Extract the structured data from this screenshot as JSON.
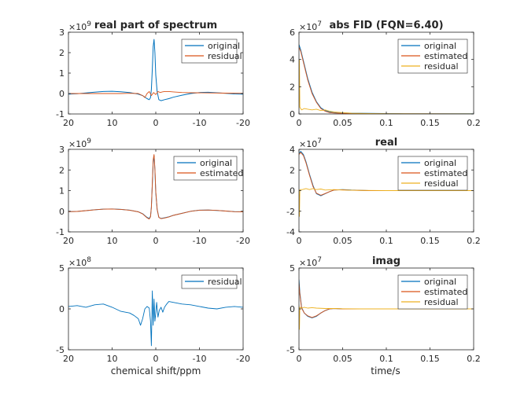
{
  "figure": {
    "xlabel_left": "chemical shift/ppm",
    "xlabel_right": "time/s"
  },
  "chart_data": [
    {
      "type": "line",
      "title": "real part of spectrum",
      "xlabel": "",
      "ylabel": "",
      "xlim": [
        20,
        -20
      ],
      "ylim": [
        -1,
        3
      ],
      "x_reversed": true,
      "xticks": [
        20,
        10,
        0,
        -10,
        -20
      ],
      "xtick_labels": [
        "20",
        "10",
        "0",
        "-10",
        "-20"
      ],
      "yticks": [
        -1,
        0,
        1,
        2,
        3
      ],
      "ytick_labels": [
        "-1",
        "0",
        "1",
        "2",
        "3"
      ],
      "exponent_label": "×10^9",
      "legend_position": "top-right",
      "grid": false,
      "series": [
        {
          "name": "original",
          "color": "#0072BD",
          "x": [
            20,
            18,
            16,
            14,
            12,
            10,
            8,
            6,
            4,
            3,
            2,
            1.5,
            1.2,
            1.0,
            0.8,
            0.6,
            0.4,
            0.2,
            0,
            -0.3,
            -0.7,
            -1.2,
            -2,
            -3,
            -4,
            -6,
            -8,
            -10,
            -12,
            -14,
            -16,
            -18,
            -20
          ],
          "y": [
            -0.03,
            -0.01,
            0.03,
            0.07,
            0.1,
            0.11,
            0.09,
            0.05,
            -0.03,
            -0.1,
            -0.25,
            -0.3,
            -0.2,
            0.2,
            1.2,
            2.3,
            2.65,
            2.0,
            0.9,
            0.1,
            -0.3,
            -0.35,
            -0.3,
            -0.25,
            -0.18,
            -0.08,
            0.0,
            0.05,
            0.06,
            0.04,
            0.01,
            -0.02,
            -0.03
          ]
        },
        {
          "name": "residual",
          "color": "#D95319",
          "x": [
            20,
            16,
            12,
            8,
            6,
            4,
            3,
            2.5,
            2,
            1.5,
            1,
            0.5,
            0,
            -0.5,
            -1,
            -1.5,
            -2,
            -3,
            -4,
            -6,
            -8,
            -12,
            -16,
            -20
          ],
          "y": [
            0.0,
            0.0,
            0.0,
            0.0,
            0.01,
            0.0,
            -0.1,
            -0.2,
            0.0,
            0.1,
            -0.1,
            0.05,
            -0.05,
            0.1,
            0.05,
            0.08,
            0.1,
            0.1,
            0.08,
            0.05,
            0.04,
            0.03,
            0.02,
            0.01
          ]
        }
      ]
    },
    {
      "type": "line",
      "title": "abs FID (FQN=6.40)",
      "xlabel": "",
      "ylabel": "",
      "xlim": [
        0,
        0.2
      ],
      "ylim": [
        0,
        6
      ],
      "xticks": [
        0,
        0.05,
        0.1,
        0.15,
        0.2
      ],
      "xtick_labels": [
        "0",
        "0.05",
        "0.1",
        "0.15",
        "0.2"
      ],
      "yticks": [
        0,
        2,
        4,
        6
      ],
      "ytick_labels": [
        "0",
        "2",
        "4",
        "6"
      ],
      "exponent_label": "×10^7",
      "legend_position": "top-right",
      "grid": false,
      "series": [
        {
          "name": "original",
          "color": "#0072BD",
          "x": [
            0,
            0.002,
            0.005,
            0.01,
            0.015,
            0.02,
            0.025,
            0.03,
            0.035,
            0.04,
            0.05,
            0.06,
            0.08,
            0.1,
            0.12,
            0.15,
            0.2
          ],
          "y": [
            5.1,
            4.7,
            3.9,
            2.6,
            1.6,
            0.9,
            0.45,
            0.25,
            0.15,
            0.12,
            0.08,
            0.06,
            0.04,
            0.03,
            0.02,
            0.02,
            0.01
          ]
        },
        {
          "name": "estimated",
          "color": "#D95319",
          "x": [
            0,
            0.002,
            0.005,
            0.01,
            0.015,
            0.02,
            0.025,
            0.03,
            0.035,
            0.04,
            0.05,
            0.06,
            0.08,
            0.1,
            0.12,
            0.15,
            0.2
          ],
          "y": [
            4.9,
            4.6,
            3.8,
            2.5,
            1.5,
            0.85,
            0.4,
            0.2,
            0.1,
            0.07,
            0.04,
            0.03,
            0.02,
            0.01,
            0.01,
            0.01,
            0.0
          ]
        },
        {
          "name": "residual",
          "color": "#EDB120",
          "x": [
            0,
            0.0005,
            0.001,
            0.003,
            0.006,
            0.01,
            0.015,
            0.02,
            0.025,
            0.03,
            0.035,
            0.04,
            0.05,
            0.06,
            0.08,
            0.1,
            0.15,
            0.2
          ],
          "y": [
            0.3,
            4.0,
            0.5,
            0.3,
            0.4,
            0.35,
            0.3,
            0.35,
            0.25,
            0.3,
            0.2,
            0.15,
            0.1,
            0.05,
            0.03,
            0.02,
            0.01,
            0.01
          ]
        }
      ]
    },
    {
      "type": "line",
      "title": "",
      "xlabel": "",
      "ylabel": "",
      "xlim": [
        20,
        -20
      ],
      "ylim": [
        -1,
        3
      ],
      "x_reversed": true,
      "xticks": [
        20,
        10,
        0,
        -10,
        -20
      ],
      "xtick_labels": [
        "20",
        "10",
        "0",
        "-10",
        "-20"
      ],
      "yticks": [
        -1,
        0,
        1,
        2,
        3
      ],
      "ytick_labels": [
        "-1",
        "0",
        "1",
        "2",
        "3"
      ],
      "exponent_label": "×10^9",
      "legend_position": "top-right",
      "grid": false,
      "series": [
        {
          "name": "original",
          "color": "#0072BD",
          "x": [
            20,
            18,
            16,
            14,
            12,
            10,
            8,
            6,
            4,
            3,
            2,
            1.5,
            1.2,
            1.0,
            0.8,
            0.6,
            0.4,
            0.2,
            0,
            -0.3,
            -0.7,
            -1.2,
            -2,
            -3,
            -4,
            -6,
            -8,
            -10,
            -12,
            -14,
            -16,
            -18,
            -20
          ],
          "y": [
            -0.02,
            -0.01,
            0.03,
            0.07,
            0.1,
            0.11,
            0.09,
            0.05,
            -0.03,
            -0.12,
            -0.3,
            -0.35,
            -0.25,
            0.2,
            1.3,
            2.4,
            2.7,
            2.0,
            0.9,
            0.1,
            -0.3,
            -0.35,
            -0.32,
            -0.27,
            -0.2,
            -0.1,
            0.0,
            0.05,
            0.06,
            0.04,
            0.01,
            -0.02,
            -0.03
          ]
        },
        {
          "name": "estimated",
          "color": "#D95319",
          "x": [
            20,
            18,
            16,
            14,
            12,
            10,
            8,
            6,
            4,
            3,
            2,
            1.5,
            1.2,
            1.0,
            0.8,
            0.6,
            0.4,
            0.2,
            0,
            -0.3,
            -0.7,
            -1.2,
            -2,
            -3,
            -4,
            -6,
            -8,
            -10,
            -12,
            -14,
            -16,
            -18,
            -20
          ],
          "y": [
            -0.02,
            -0.01,
            0.03,
            0.07,
            0.1,
            0.11,
            0.09,
            0.05,
            -0.03,
            -0.13,
            -0.32,
            -0.38,
            -0.27,
            0.18,
            1.35,
            2.5,
            2.75,
            2.05,
            0.95,
            0.1,
            -0.3,
            -0.36,
            -0.33,
            -0.28,
            -0.2,
            -0.1,
            0.0,
            0.05,
            0.06,
            0.04,
            0.01,
            -0.02,
            -0.03
          ]
        }
      ]
    },
    {
      "type": "line",
      "title": "real",
      "xlabel": "",
      "ylabel": "",
      "xlim": [
        0,
        0.2
      ],
      "ylim": [
        -4,
        4
      ],
      "xticks": [
        0,
        0.05,
        0.1,
        0.15,
        0.2
      ],
      "xtick_labels": [
        "0",
        "0.05",
        "0.1",
        "0.15",
        "0.2"
      ],
      "yticks": [
        -4,
        -2,
        0,
        2,
        4
      ],
      "ytick_labels": [
        "-4",
        "-2",
        "0",
        "2",
        "4"
      ],
      "exponent_label": "×10^7",
      "legend_position": "top-right",
      "grid": false,
      "series": [
        {
          "name": "original",
          "color": "#0072BD",
          "x": [
            0,
            0.002,
            0.005,
            0.008,
            0.012,
            0.016,
            0.02,
            0.025,
            0.03,
            0.035,
            0.04,
            0.05,
            0.06,
            0.08,
            0.1,
            0.15,
            0.2
          ],
          "y": [
            3.6,
            3.8,
            3.5,
            2.8,
            1.6,
            0.5,
            -0.3,
            -0.5,
            -0.3,
            -0.1,
            0.05,
            0.1,
            0.05,
            0.0,
            0.0,
            0.0,
            0.0
          ]
        },
        {
          "name": "estimated",
          "color": "#D95319",
          "x": [
            0,
            0.002,
            0.005,
            0.008,
            0.012,
            0.016,
            0.02,
            0.025,
            0.03,
            0.035,
            0.04,
            0.05,
            0.06,
            0.08,
            0.1,
            0.15,
            0.2
          ],
          "y": [
            3.5,
            3.7,
            3.4,
            2.7,
            1.5,
            0.4,
            -0.25,
            -0.45,
            -0.28,
            -0.1,
            0.05,
            0.08,
            0.04,
            0.0,
            0.0,
            0.0,
            0.0
          ]
        },
        {
          "name": "residual",
          "color": "#EDB120",
          "x": [
            0,
            0.0005,
            0.001,
            0.004,
            0.008,
            0.012,
            0.016,
            0.02,
            0.025,
            0.03,
            0.04,
            0.05,
            0.07,
            0.1,
            0.15,
            0.2
          ],
          "y": [
            0.0,
            -2.5,
            0.1,
            0.1,
            0.2,
            0.1,
            0.2,
            0.1,
            0.15,
            0.05,
            0.1,
            0.05,
            0.02,
            0.0,
            0.0,
            0.0
          ]
        }
      ]
    },
    {
      "type": "line",
      "title": "",
      "xlabel": "chemical shift/ppm",
      "ylabel": "",
      "xlim": [
        20,
        -20
      ],
      "ylim": [
        -5,
        5
      ],
      "x_reversed": true,
      "xticks": [
        20,
        10,
        0,
        -10,
        -20
      ],
      "xtick_labels": [
        "20",
        "10",
        "0",
        "-10",
        "-20"
      ],
      "yticks": [
        -5,
        0,
        5
      ],
      "ytick_labels": [
        "-5",
        "0",
        "5"
      ],
      "exponent_label": "×10^8",
      "legend_position": "top-right",
      "grid": false,
      "series": [
        {
          "name": "residual",
          "color": "#0072BD",
          "x": [
            20,
            18,
            16,
            14,
            12,
            10,
            8,
            6,
            5,
            4,
            3.5,
            3,
            2.5,
            2,
            1.5,
            1.2,
            1.0,
            0.8,
            0.6,
            0.4,
            0.2,
            0,
            -0.2,
            -0.5,
            -0.8,
            -1.2,
            -1.6,
            -2,
            -2.5,
            -3,
            -4,
            -6,
            -8,
            -10,
            -12,
            -14,
            -16,
            -18,
            -20
          ],
          "y": [
            0.3,
            0.4,
            0.2,
            0.5,
            0.6,
            0.2,
            -0.3,
            -0.5,
            -0.8,
            -1.2,
            -2.0,
            -1.2,
            0.0,
            0.3,
            0.1,
            -1.5,
            -4.5,
            2.2,
            -2.0,
            1.2,
            -1.5,
            -0.5,
            0.8,
            -1.0,
            -0.2,
            0.2,
            -0.4,
            0.2,
            0.6,
            0.9,
            0.8,
            0.6,
            0.5,
            0.3,
            0.1,
            0.0,
            0.2,
            0.3,
            0.2
          ]
        }
      ]
    },
    {
      "type": "line",
      "title": "imag",
      "xlabel": "time/s",
      "ylabel": "",
      "xlim": [
        0,
        0.2
      ],
      "ylim": [
        -5,
        5
      ],
      "xticks": [
        0,
        0.05,
        0.1,
        0.15,
        0.2
      ],
      "xtick_labels": [
        "0",
        "0.05",
        "0.1",
        "0.15",
        "0.2"
      ],
      "yticks": [
        -5,
        0,
        5
      ],
      "ytick_labels": [
        "-5",
        "0",
        "5"
      ],
      "exponent_label": "×10^7",
      "legend_position": "top-right",
      "grid": false,
      "series": [
        {
          "name": "original",
          "color": "#0072BD",
          "x": [
            0,
            0.001,
            0.003,
            0.006,
            0.01,
            0.015,
            0.02,
            0.025,
            0.03,
            0.035,
            0.04,
            0.05,
            0.06,
            0.08,
            0.1,
            0.15,
            0.2
          ],
          "y": [
            3.6,
            2.0,
            0.2,
            -0.5,
            -0.9,
            -1.1,
            -0.9,
            -0.5,
            -0.2,
            0.0,
            0.05,
            0.0,
            0.0,
            0.0,
            0.0,
            0.0,
            0.0
          ]
        },
        {
          "name": "estimated",
          "color": "#D95319",
          "x": [
            0,
            0.001,
            0.003,
            0.006,
            0.01,
            0.015,
            0.02,
            0.025,
            0.03,
            0.035,
            0.04,
            0.05,
            0.06,
            0.08,
            0.1,
            0.15,
            0.2
          ],
          "y": [
            3.2,
            1.8,
            0.1,
            -0.5,
            -0.85,
            -1.05,
            -0.85,
            -0.5,
            -0.2,
            0.0,
            0.05,
            0.0,
            0.0,
            0.0,
            0.0,
            0.0,
            0.0
          ]
        },
        {
          "name": "residual",
          "color": "#EDB120",
          "x": [
            0,
            0.0005,
            0.001,
            0.003,
            0.006,
            0.01,
            0.015,
            0.02,
            0.03,
            0.04,
            0.05,
            0.07,
            0.1,
            0.15,
            0.2
          ],
          "y": [
            0.5,
            -2.5,
            0.2,
            0.1,
            0.2,
            0.1,
            0.15,
            0.1,
            0.05,
            0.05,
            0.02,
            0.0,
            0.0,
            0.0,
            0.0
          ]
        }
      ]
    }
  ]
}
